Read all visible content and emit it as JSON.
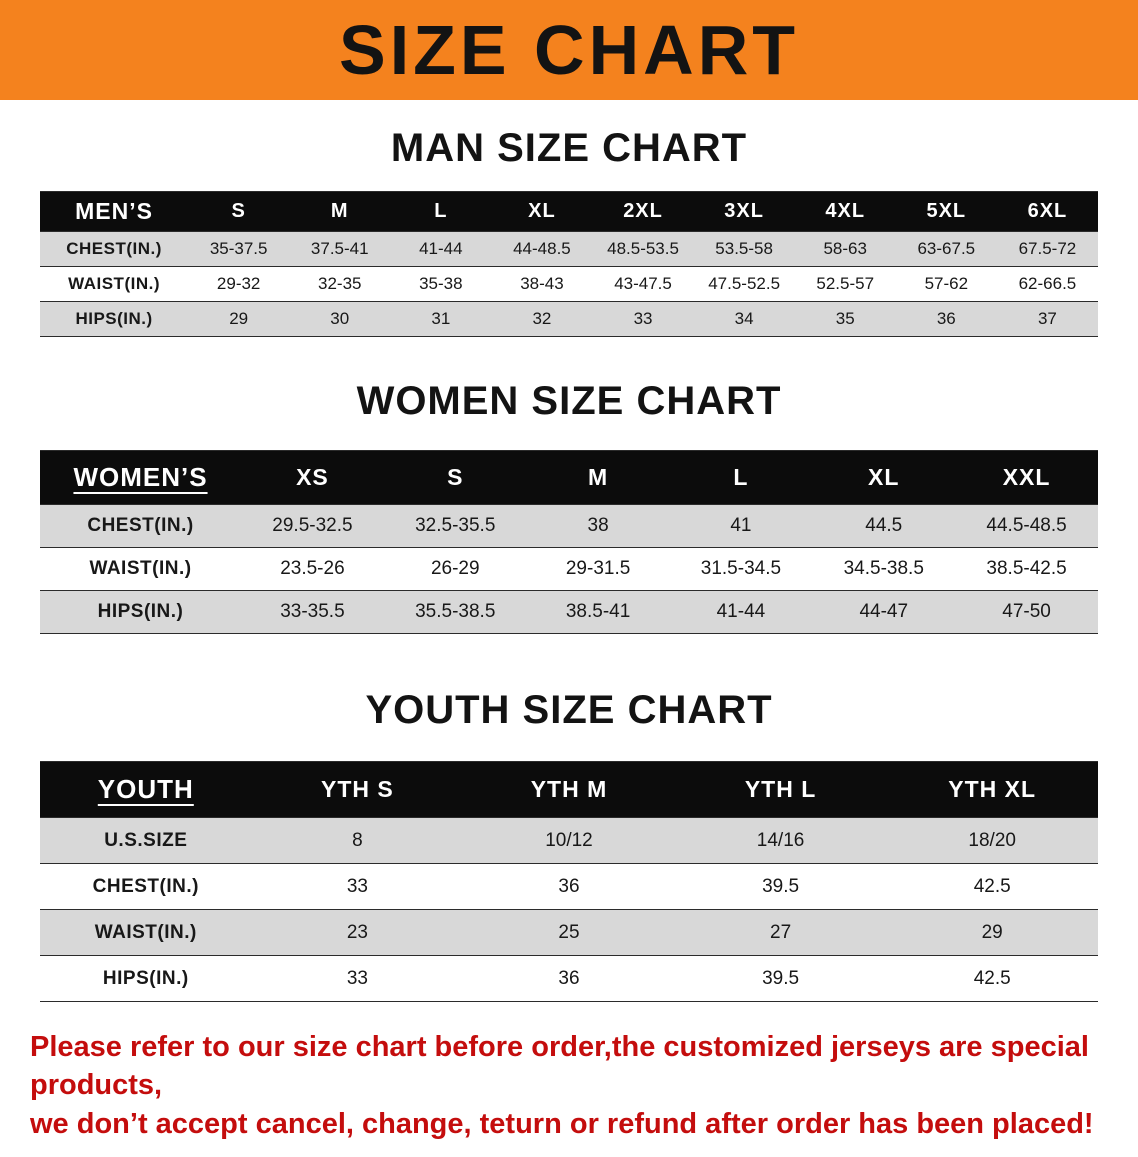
{
  "banner": {
    "title": "SIZE CHART"
  },
  "sections": [
    {
      "id": "men",
      "heading": "MAN SIZE CHART",
      "table": {
        "header": [
          "MEN’S",
          "S",
          "M",
          "L",
          "XL",
          "2XL",
          "3XL",
          "4XL",
          "5XL",
          "6XL"
        ],
        "rows": [
          [
            "CHEST(IN.)",
            "35-37.5",
            "37.5-41",
            "41-44",
            "44-48.5",
            "48.5-53.5",
            "53.5-58",
            "58-63",
            "63-67.5",
            "67.5-72"
          ],
          [
            "WAIST(IN.)",
            "29-32",
            "32-35",
            "35-38",
            "38-43",
            "43-47.5",
            "47.5-52.5",
            "52.5-57",
            "57-62",
            "62-66.5"
          ],
          [
            "HIPS(IN.)",
            "29",
            "30",
            "31",
            "32",
            "33",
            "34",
            "35",
            "36",
            "37"
          ]
        ]
      }
    },
    {
      "id": "women",
      "heading": "WOMEN SIZE CHART",
      "table": {
        "header": [
          "WOMEN’S",
          "XS",
          "S",
          "M",
          "L",
          "XL",
          "XXL"
        ],
        "rows": [
          [
            "CHEST(IN.)",
            "29.5-32.5",
            "32.5-35.5",
            "38",
            "41",
            "44.5",
            "44.5-48.5"
          ],
          [
            "WAIST(IN.)",
            "23.5-26",
            "26-29",
            "29-31.5",
            "31.5-34.5",
            "34.5-38.5",
            "38.5-42.5"
          ],
          [
            "HIPS(IN.)",
            "33-35.5",
            "35.5-38.5",
            "38.5-41",
            "41-44",
            "44-47",
            "47-50"
          ]
        ]
      }
    },
    {
      "id": "youth",
      "heading": "YOUTH SIZE CHART",
      "table": {
        "header": [
          "YOUTH",
          "YTH S",
          "YTH M",
          "YTH L",
          "YTH XL"
        ],
        "rows": [
          [
            "U.S.SIZE",
            "8",
            "10/12",
            "14/16",
            "18/20"
          ],
          [
            "CHEST(IN.)",
            "33",
            "36",
            "39.5",
            "42.5"
          ],
          [
            "WAIST(IN.)",
            "23",
            "25",
            "27",
            "29"
          ],
          [
            "HIPS(IN.)",
            "33",
            "36",
            "39.5",
            "42.5"
          ]
        ]
      }
    }
  ],
  "footer": {
    "line1": "Please refer to our size chart before order,the customized jerseys are special products,",
    "line2": "we don’t accept cancel, change, teturn or refund after order has been placed!"
  },
  "colors": {
    "banner-orange": "#f4821e",
    "header-black": "#0c0c0c",
    "row-gray": "#d8d8d8",
    "notice-red": "#c40d0d"
  }
}
